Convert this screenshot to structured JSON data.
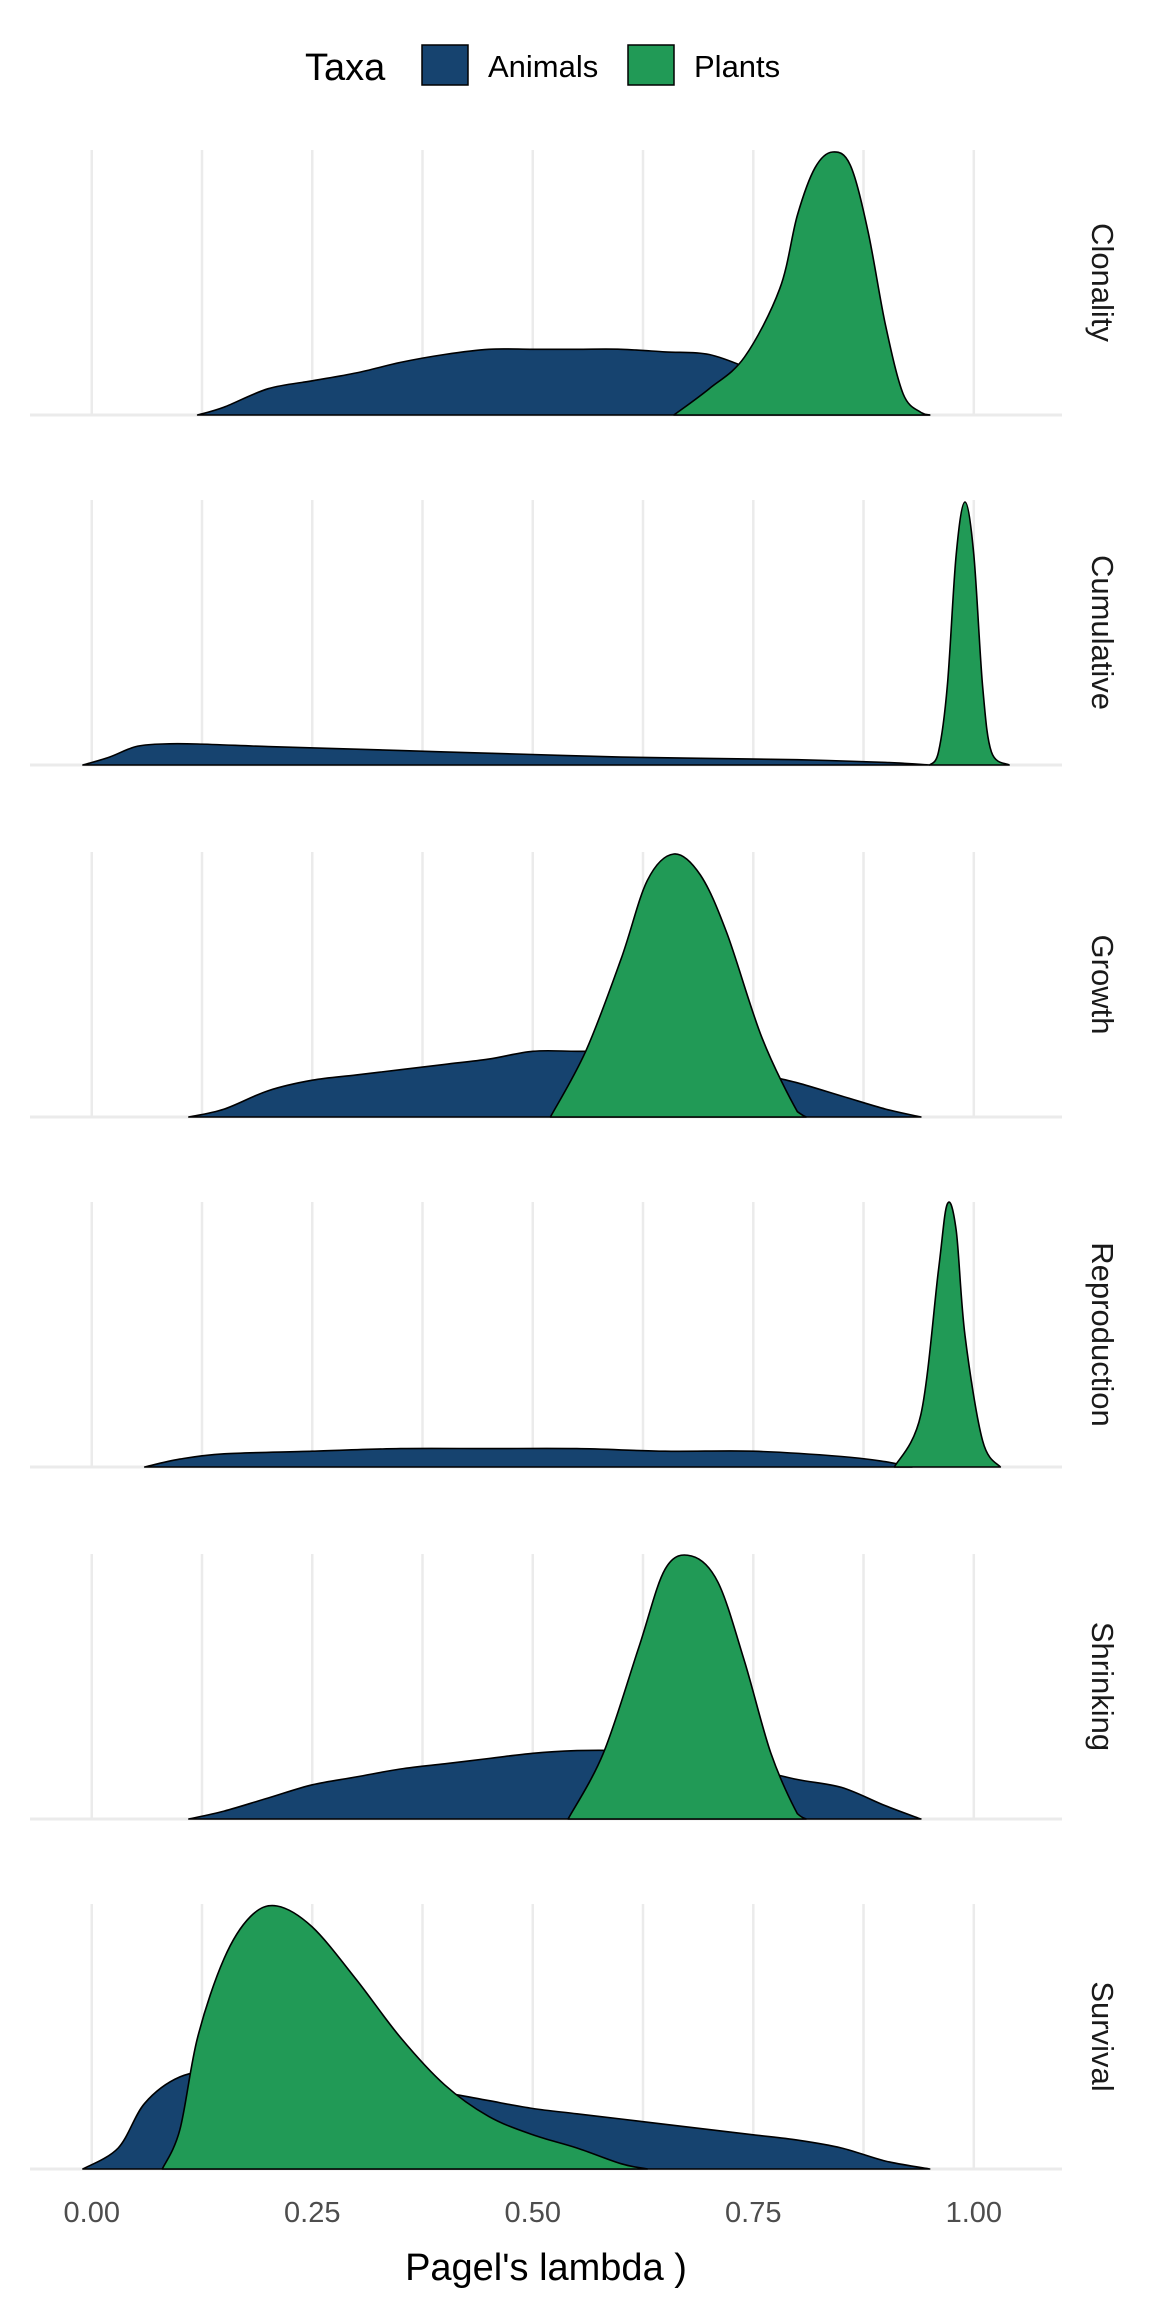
{
  "chart_data": {
    "type": "area",
    "subtype": "faceted-density",
    "xlabel": "Pagel's lambda )",
    "ylabel": "",
    "xlim": [
      -0.07,
      1.1
    ],
    "x_ticks": [
      0.0,
      0.25,
      0.5,
      0.75,
      1.0
    ],
    "x_tick_labels": [
      "0.00",
      "0.25",
      "0.50",
      "0.75",
      "1.00"
    ],
    "grid": true,
    "legend": {
      "title": "Taxa",
      "position": "top",
      "entries": [
        {
          "name": "Animals",
          "color": "#16436F"
        },
        {
          "name": "Plants",
          "color": "#219A56"
        }
      ]
    },
    "facets": [
      {
        "label": "Clonality",
        "series": [
          {
            "name": "Animals",
            "color": "#16436F",
            "x": [
              0.12,
              0.15,
              0.2,
              0.25,
              0.3,
              0.35,
              0.4,
              0.45,
              0.5,
              0.55,
              0.6,
              0.65,
              0.7,
              0.75,
              0.8,
              0.85,
              0.9,
              0.95
            ],
            "y": [
              0,
              0.03,
              0.1,
              0.13,
              0.16,
              0.2,
              0.23,
              0.25,
              0.25,
              0.25,
              0.25,
              0.24,
              0.23,
              0.17,
              0.1,
              0.04,
              0.01,
              0
            ]
          },
          {
            "name": "Plants",
            "color": "#219A56",
            "x": [
              0.66,
              0.7,
              0.74,
              0.78,
              0.8,
              0.82,
              0.84,
              0.86,
              0.88,
              0.9,
              0.92,
              0.94,
              0.95
            ],
            "y": [
              0,
              0.1,
              0.22,
              0.48,
              0.76,
              0.94,
              1.0,
              0.95,
              0.7,
              0.34,
              0.08,
              0.01,
              0
            ]
          }
        ]
      },
      {
        "label": "Cumulative",
        "series": [
          {
            "name": "Animals",
            "color": "#16436F",
            "x": [
              -0.01,
              0.02,
              0.05,
              0.08,
              0.12,
              0.2,
              0.3,
              0.4,
              0.5,
              0.6,
              0.7,
              0.8,
              0.9,
              0.95
            ],
            "y": [
              0,
              0.03,
              0.07,
              0.08,
              0.08,
              0.07,
              0.06,
              0.05,
              0.04,
              0.03,
              0.025,
              0.02,
              0.01,
              0
            ]
          },
          {
            "name": "Plants",
            "color": "#219A56",
            "x": [
              0.95,
              0.96,
              0.97,
              0.98,
              0.99,
              1.0,
              1.01,
              1.02,
              1.04
            ],
            "y": [
              0,
              0.05,
              0.3,
              0.8,
              1.0,
              0.8,
              0.3,
              0.05,
              0
            ]
          }
        ]
      },
      {
        "label": "Growth",
        "series": [
          {
            "name": "Animals",
            "color": "#16436F",
            "x": [
              0.11,
              0.15,
              0.2,
              0.25,
              0.3,
              0.35,
              0.4,
              0.45,
              0.5,
              0.55,
              0.6,
              0.65,
              0.7,
              0.75,
              0.8,
              0.85,
              0.9,
              0.94
            ],
            "y": [
              0,
              0.03,
              0.1,
              0.14,
              0.16,
              0.18,
              0.2,
              0.22,
              0.25,
              0.25,
              0.25,
              0.24,
              0.22,
              0.17,
              0.13,
              0.08,
              0.03,
              0
            ]
          },
          {
            "name": "Plants",
            "color": "#219A56",
            "x": [
              0.52,
              0.56,
              0.6,
              0.63,
              0.66,
              0.69,
              0.72,
              0.76,
              0.8,
              0.81
            ],
            "y": [
              0,
              0.25,
              0.6,
              0.9,
              1.0,
              0.92,
              0.7,
              0.3,
              0.02,
              0
            ]
          }
        ]
      },
      {
        "label": "Reproduction",
        "series": [
          {
            "name": "Animals",
            "color": "#16436F",
            "x": [
              0.06,
              0.1,
              0.15,
              0.25,
              0.35,
              0.45,
              0.55,
              0.65,
              0.75,
              0.85,
              0.9,
              0.93
            ],
            "y": [
              0,
              0.03,
              0.05,
              0.06,
              0.07,
              0.07,
              0.07,
              0.06,
              0.06,
              0.04,
              0.02,
              0
            ]
          },
          {
            "name": "Plants",
            "color": "#219A56",
            "x": [
              0.91,
              0.94,
              0.96,
              0.97,
              0.98,
              0.99,
              1.01,
              1.03
            ],
            "y": [
              0,
              0.2,
              0.75,
              1.0,
              0.9,
              0.5,
              0.1,
              0
            ]
          }
        ]
      },
      {
        "label": "Shrinking",
        "series": [
          {
            "name": "Animals",
            "color": "#16436F",
            "x": [
              0.11,
              0.15,
              0.2,
              0.25,
              0.3,
              0.35,
              0.4,
              0.45,
              0.5,
              0.55,
              0.6,
              0.65,
              0.7,
              0.75,
              0.8,
              0.85,
              0.9,
              0.94
            ],
            "y": [
              0,
              0.03,
              0.08,
              0.13,
              0.16,
              0.19,
              0.21,
              0.23,
              0.25,
              0.26,
              0.26,
              0.25,
              0.23,
              0.19,
              0.15,
              0.12,
              0.05,
              0
            ]
          },
          {
            "name": "Plants",
            "color": "#219A56",
            "x": [
              0.54,
              0.58,
              0.62,
              0.65,
              0.68,
              0.71,
              0.74,
              0.77,
              0.8,
              0.81
            ],
            "y": [
              0,
              0.25,
              0.65,
              0.95,
              1.0,
              0.9,
              0.6,
              0.25,
              0.02,
              0
            ]
          }
        ]
      },
      {
        "label": "Survival",
        "series": [
          {
            "name": "Animals",
            "color": "#16436F",
            "x": [
              -0.01,
              0.03,
              0.06,
              0.1,
              0.15,
              0.2,
              0.25,
              0.3,
              0.35,
              0.4,
              0.45,
              0.5,
              0.55,
              0.6,
              0.65,
              0.7,
              0.75,
              0.8,
              0.85,
              0.9,
              0.95
            ],
            "y": [
              0,
              0.08,
              0.25,
              0.35,
              0.38,
              0.38,
              0.36,
              0.34,
              0.31,
              0.29,
              0.26,
              0.23,
              0.21,
              0.19,
              0.17,
              0.15,
              0.13,
              0.11,
              0.08,
              0.03,
              0
            ]
          },
          {
            "name": "Plants",
            "color": "#219A56",
            "x": [
              0.08,
              0.1,
              0.12,
              0.15,
              0.18,
              0.21,
              0.25,
              0.3,
              0.35,
              0.4,
              0.45,
              0.5,
              0.55,
              0.6,
              0.63
            ],
            "y": [
              0,
              0.15,
              0.5,
              0.8,
              0.96,
              1.0,
              0.92,
              0.72,
              0.5,
              0.32,
              0.2,
              0.13,
              0.08,
              0.02,
              0
            ]
          }
        ]
      }
    ]
  }
}
